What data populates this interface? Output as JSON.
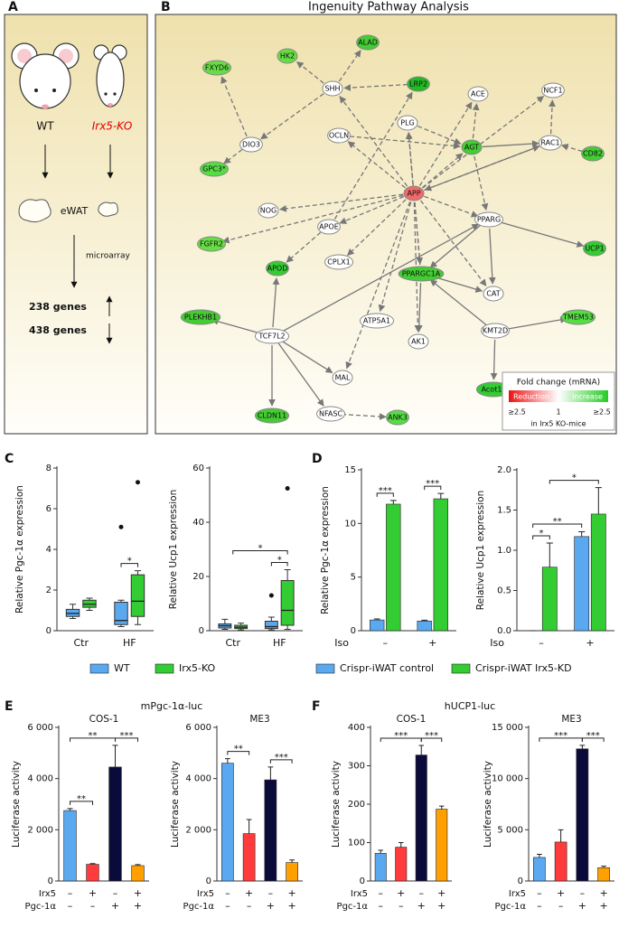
{
  "figure": {
    "panel_labels": [
      "A",
      "B",
      "C",
      "D",
      "E",
      "F"
    ],
    "e_title": "mPgc-1α-luc",
    "f_title": "hUCP1-luc"
  },
  "panel_a": {
    "wt": "WT",
    "ko": "Irx5-KO",
    "tissue": "eWAT",
    "method": "microarray",
    "up": "238 genes",
    "down": "438 genes"
  },
  "network": {
    "title": "Ingenuity Pathway Analysis",
    "nodes": [
      {
        "label": "FXYD6",
        "color": "#66dd44"
      },
      {
        "label": "HK2",
        "color": "#66dd44"
      },
      {
        "label": "ALAD",
        "color": "#44cc33"
      },
      {
        "label": "SHH",
        "color": "#ffffff"
      },
      {
        "label": "LRP2",
        "color": "#22bb22"
      },
      {
        "label": "ACE",
        "color": "#ffffff"
      },
      {
        "label": "NCF1",
        "color": "#ffffff"
      },
      {
        "label": "DIO3",
        "color": "#ffffff"
      },
      {
        "label": "PLG",
        "color": "#ffffff"
      },
      {
        "label": "OCLN",
        "color": "#ffffff"
      },
      {
        "label": "AGT",
        "color": "#44cc33"
      },
      {
        "label": "RAC1",
        "color": "#ffffff"
      },
      {
        "label": "CD82",
        "color": "#44cc33"
      },
      {
        "label": "GPC3*",
        "color": "#55dd44"
      },
      {
        "label": "NOG",
        "color": "#ffffff"
      },
      {
        "label": "APOE",
        "color": "#ffffff"
      },
      {
        "label": "APP",
        "color": "#f06a6a"
      },
      {
        "label": "PPARG",
        "color": "#ffffff"
      },
      {
        "label": "FGFR2",
        "color": "#66dd44"
      },
      {
        "label": "UCP1",
        "color": "#33cc33"
      },
      {
        "label": "APOD",
        "color": "#33cc33"
      },
      {
        "label": "CPLX1",
        "color": "#ffffff"
      },
      {
        "label": "PPARGC1A",
        "color": "#44cc33"
      },
      {
        "label": "CAT",
        "color": "#ffffff"
      },
      {
        "label": "PLEKHB1",
        "color": "#44cc33"
      },
      {
        "label": "ATP5A1",
        "color": "#ffffff"
      },
      {
        "label": "TCF7L2",
        "color": "#ffffff"
      },
      {
        "label": "AK1",
        "color": "#ffffff"
      },
      {
        "label": "KMT2D",
        "color": "#ffffff"
      },
      {
        "label": "TMEM53",
        "color": "#55dd44"
      },
      {
        "label": "MAL",
        "color": "#ffffff"
      },
      {
        "label": "Acot1*",
        "color": "#33cc33"
      },
      {
        "label": "CLDN11",
        "color": "#44cc33"
      },
      {
        "label": "NFASC",
        "color": "#ffffff"
      },
      {
        "label": "ANK3",
        "color": "#55dd44"
      }
    ],
    "legend": {
      "title": "Fold change (mRNA)",
      "low": "Reduction",
      "high": "Increase",
      "ticks": [
        "≥2.5",
        "1",
        "≥2.5"
      ],
      "note": "in Irx5 KO-mice"
    }
  },
  "chart_data": [
    {
      "type": "box",
      "ylabel": "Relative Pgc-1α expression",
      "categories": [
        "Ctr",
        "HF"
      ],
      "ylim": [
        0,
        8
      ],
      "yticks": [
        0,
        2,
        4,
        6,
        8
      ],
      "series": [
        {
          "name": "WT",
          "color": "#5aa9f0",
          "boxes": [
            [
              0.6,
              0.7,
              0.85,
              1.05,
              1.3
            ],
            [
              0.2,
              0.3,
              0.5,
              1.4,
              1.5
            ]
          ],
          "outliers": [
            [],
            [
              5.1
            ]
          ]
        },
        {
          "name": "Irx5-KO",
          "color": "#33cc33",
          "boxes": [
            [
              1.0,
              1.15,
              1.3,
              1.5,
              1.6
            ],
            [
              0.3,
              0.7,
              1.45,
              2.75,
              2.95
            ]
          ],
          "outliers": [
            [],
            [
              7.3
            ]
          ]
        }
      ],
      "annotations": [
        "*"
      ]
    },
    {
      "type": "box",
      "ylabel": "Relative Ucp1 expression",
      "categories": [
        "Ctr",
        "HF"
      ],
      "ylim": [
        0,
        60
      ],
      "yticks": [
        0,
        20,
        40,
        60
      ],
      "series": [
        {
          "color": "#5aa9f0",
          "boxes": [
            [
              0.5,
              1,
              1.8,
              2.5,
              4.2
            ],
            [
              0.3,
              0.8,
              1.5,
              3.5,
              5
            ]
          ],
          "outliers": [
            [],
            [
              13
            ]
          ]
        },
        {
          "color": "#33cc33",
          "boxes": [
            [
              0.3,
              0.8,
              1.3,
              2,
              2.8
            ],
            [
              0.5,
              2,
              7.5,
              18.5,
              22.5
            ]
          ],
          "outliers": [
            [],
            [
              52.5
            ]
          ]
        }
      ],
      "annotations": [
        "*",
        "*"
      ]
    },
    {
      "type": "bar",
      "ylabel": "Relative Pgc-1α expression",
      "x_label": "Iso",
      "categories": [
        "–",
        "+"
      ],
      "ylim": [
        0,
        15
      ],
      "yticks": [
        0,
        5,
        10,
        15
      ],
      "series": [
        {
          "name": "Crispr-iWAT control",
          "color": "#5aa9f0",
          "values": [
            1.0,
            0.9
          ],
          "errors": [
            0.1,
            0.08
          ]
        },
        {
          "name": "Crispr-iWAT Irx5-KD",
          "color": "#33cc33",
          "values": [
            11.8,
            12.3
          ],
          "errors": [
            0.35,
            0.5
          ]
        }
      ],
      "annotations": [
        "***",
        "***"
      ]
    },
    {
      "type": "bar",
      "ylabel": "Relative Ucp1 expression",
      "x_label": "Iso",
      "categories": [
        "–",
        "+"
      ],
      "ylim": [
        0,
        2
      ],
      "yticks": [
        {
          "value": 0,
          "label": "0.0"
        },
        0.5,
        {
          "value": 1,
          "label": "1.0"
        },
        1.5,
        {
          "value": 2,
          "label": "2.0"
        }
      ],
      "series": [
        {
          "color": "#5aa9f0",
          "values": [
            0,
            1.17
          ],
          "errors": [
            0,
            0.06
          ]
        },
        {
          "color": "#33cc33",
          "values": [
            0.79,
            1.45
          ],
          "errors": [
            0.3,
            0.33
          ]
        }
      ],
      "annotations": [
        "*",
        "**",
        "*"
      ]
    },
    {
      "type": "bar",
      "subtitle": "COS-1",
      "ylabel": "Luciferase activity",
      "category_rows": [
        "Irx5",
        "Pgc-1α"
      ],
      "categories": [
        [
          "–",
          "–"
        ],
        [
          "+",
          "–"
        ],
        [
          "–",
          "+"
        ],
        [
          "+",
          "+"
        ]
      ],
      "ylim": [
        0,
        6000
      ],
      "yticks": [
        0,
        {
          "value": 2000,
          "label": "2 000"
        },
        {
          "value": 4000,
          "label": "4 000"
        },
        {
          "value": 6000,
          "label": "6 000"
        }
      ],
      "series": [
        {
          "colors": [
            "#5aa9f0",
            "#ff3b3b",
            "#0b0b3b",
            "#ffa000"
          ],
          "values": [
            2750,
            650,
            4450,
            600
          ],
          "errors": [
            80,
            30,
            850,
            40
          ]
        }
      ],
      "annotations": [
        "**",
        "**",
        "***"
      ]
    },
    {
      "type": "bar",
      "subtitle": "ME3",
      "ylabel": "Luciferase activity",
      "category_rows": [
        "Irx5",
        "Pgc-1α"
      ],
      "categories": [
        [
          "–",
          "–"
        ],
        [
          "+",
          "–"
        ],
        [
          "–",
          "+"
        ],
        [
          "+",
          "+"
        ]
      ],
      "ylim": [
        0,
        6000
      ],
      "yticks": [
        0,
        {
          "value": 2000,
          "label": "2 000"
        },
        {
          "value": 4000,
          "label": "4 000"
        },
        {
          "value": 6000,
          "label": "6 000"
        }
      ],
      "series": [
        {
          "colors": [
            "#5aa9f0",
            "#ff3b3b",
            "#0b0b3b",
            "#ffa000"
          ],
          "values": [
            4600,
            1850,
            3950,
            720
          ],
          "errors": [
            180,
            550,
            500,
            100
          ]
        }
      ],
      "annotations": [
        "**",
        "***"
      ]
    },
    {
      "type": "bar",
      "subtitle": "COS-1",
      "ylabel": "Luciferase activity",
      "category_rows": [
        "Irx5",
        "Pgc-1α"
      ],
      "categories": [
        [
          "–",
          "–"
        ],
        [
          "+",
          "–"
        ],
        [
          "–",
          "+"
        ],
        [
          "+",
          "+"
        ]
      ],
      "ylim": [
        0,
        400
      ],
      "yticks": [
        0,
        100,
        200,
        300,
        400
      ],
      "series": [
        {
          "colors": [
            "#5aa9f0",
            "#ff3b3b",
            "#0b0b3b",
            "#ffa000"
          ],
          "values": [
            72,
            88,
            328,
            187
          ],
          "errors": [
            8,
            12,
            25,
            8
          ]
        }
      ],
      "annotations": [
        "***",
        "***"
      ]
    },
    {
      "type": "bar",
      "subtitle": "ME3",
      "ylabel": "Luciferase activity",
      "category_rows": [
        "Irx5",
        "Pgc-1α"
      ],
      "categories": [
        [
          "–",
          "–"
        ],
        [
          "+",
          "–"
        ],
        [
          "–",
          "+"
        ],
        [
          "+",
          "+"
        ]
      ],
      "ylim": [
        0,
        15000
      ],
      "yticks": [
        0,
        {
          "value": 5000,
          "label": "5 000"
        },
        {
          "value": 10000,
          "label": "10 000"
        },
        {
          "value": 15000,
          "label": "15 000"
        }
      ],
      "series": [
        {
          "colors": [
            "#5aa9f0",
            "#ff3b3b",
            "#0b0b3b",
            "#ffa000"
          ],
          "values": [
            2300,
            3800,
            12900,
            1300
          ],
          "errors": [
            300,
            1200,
            350,
            150
          ]
        }
      ],
      "annotations": [
        "***",
        "***"
      ]
    }
  ]
}
